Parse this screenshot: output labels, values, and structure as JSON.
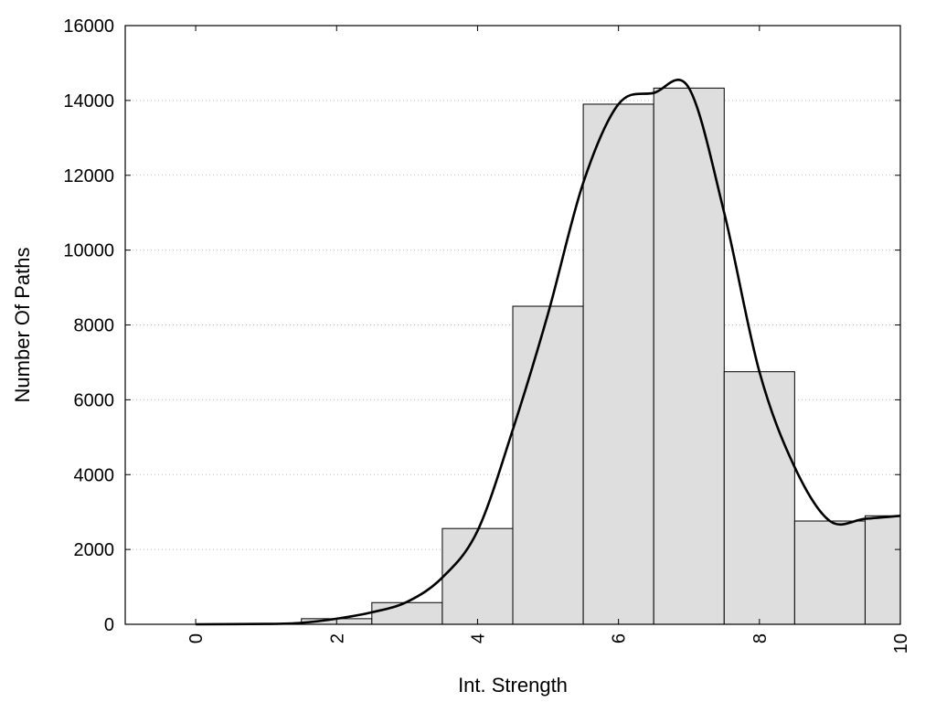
{
  "chart_data": {
    "type": "bar",
    "xlabel": "Int. Strength",
    "ylabel": "Number Of Paths",
    "xlim": [
      -1,
      10
    ],
    "ylim": [
      0,
      16000
    ],
    "x_ticks": [
      0,
      2,
      4,
      6,
      8,
      10
    ],
    "y_ticks": [
      0,
      2000,
      4000,
      6000,
      8000,
      10000,
      12000,
      14000,
      16000
    ],
    "grid": "horizontal dotted",
    "legend": "none",
    "bar_fill": "#dedede",
    "bar_stroke": "#000000",
    "curve_color": "#000000",
    "bins": [
      {
        "x": 0,
        "value": 0
      },
      {
        "x": 1,
        "value": 0
      },
      {
        "x": 2,
        "value": 150
      },
      {
        "x": 3,
        "value": 580
      },
      {
        "x": 4,
        "value": 2560
      },
      {
        "x": 5,
        "value": 8500
      },
      {
        "x": 6,
        "value": 13900
      },
      {
        "x": 7,
        "value": 14330
      },
      {
        "x": 8,
        "value": 6750
      },
      {
        "x": 9,
        "value": 2760
      },
      {
        "x": 10,
        "value": 2900
      }
    ],
    "curve": [
      [
        0,
        0
      ],
      [
        1,
        10
      ],
      [
        1.5,
        40
      ],
      [
        2,
        150
      ],
      [
        2.5,
        320
      ],
      [
        3,
        600
      ],
      [
        3.5,
        1250
      ],
      [
        4,
        2500
      ],
      [
        4.5,
        5200
      ],
      [
        5,
        8300
      ],
      [
        5.5,
        11800
      ],
      [
        6,
        13900
      ],
      [
        6.5,
        14200
      ],
      [
        7,
        14330
      ],
      [
        7.5,
        11000
      ],
      [
        8,
        6750
      ],
      [
        8.5,
        4200
      ],
      [
        9,
        2760
      ],
      [
        9.5,
        2820
      ],
      [
        10,
        2900
      ]
    ]
  }
}
